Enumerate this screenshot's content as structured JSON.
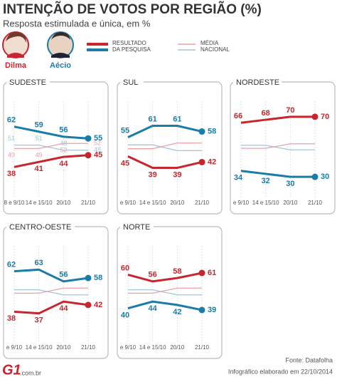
{
  "header": {
    "title": "INTENÇÃO DE VOTOS POR REGIÃO (%)",
    "subtitle": "Resposta estimulada e única, em %"
  },
  "candidates": [
    {
      "name": "Dilma",
      "color": "#c8262e"
    },
    {
      "name": "Aécio",
      "color": "#1a7ca8"
    }
  ],
  "legend": {
    "result": [
      "RESULTADO",
      "DA PESQUISA"
    ],
    "national": [
      "MÉDIA",
      "NACIONAL"
    ]
  },
  "national_average": {
    "series": [
      {
        "color": "#9fc6dd",
        "values": [
          51,
          51,
          48,
          48
        ]
      },
      {
        "color": "#e9a1a8",
        "values": [
          49,
          49,
          52,
          52
        ]
      }
    ]
  },
  "chart_data": [
    {
      "type": "line",
      "title": "SUDESTE",
      "categories": [
        "8 e 9/10",
        "14 e 15/10",
        "20/10",
        "21/10"
      ],
      "ylim": [
        25,
        75
      ],
      "show_national_labels": true,
      "series": [
        {
          "color": "#1a7ca8",
          "values": [
            62,
            59,
            56,
            55
          ]
        },
        {
          "color": "#c8262e",
          "values": [
            38,
            41,
            44,
            45
          ]
        }
      ]
    },
    {
      "type": "line",
      "title": "SUL",
      "categories": [
        "e 9/10",
        "14 e 15/10",
        "20/10",
        "21/10"
      ],
      "ylim": [
        28,
        72
      ],
      "show_national_labels": false,
      "series": [
        {
          "color": "#1a7ca8",
          "values": [
            55,
            61,
            61,
            58
          ]
        },
        {
          "color": "#c8262e",
          "values": [
            45,
            39,
            39,
            42
          ]
        }
      ]
    },
    {
      "type": "line",
      "title": "NORDESTE",
      "categories": [
        "e 9/10",
        "14 e 15/10",
        "20/10",
        "21/10"
      ],
      "ylim": [
        22,
        78
      ],
      "show_national_labels": false,
      "series": [
        {
          "color": "#c8262e",
          "values": [
            66,
            68,
            70,
            70
          ]
        },
        {
          "color": "#1a7ca8",
          "values": [
            34,
            32,
            30,
            30
          ]
        }
      ]
    },
    {
      "type": "line",
      "title": "CENTRO-OESTE",
      "categories": [
        "e 9/10",
        "14 e 15/10",
        "20/10",
        "21/10"
      ],
      "ylim": [
        25,
        75
      ],
      "show_national_labels": false,
      "series": [
        {
          "color": "#1a7ca8",
          "values": [
            62,
            63,
            56,
            58
          ]
        },
        {
          "color": "#c8262e",
          "values": [
            38,
            37,
            44,
            42
          ]
        }
      ]
    },
    {
      "type": "line",
      "title": "NORTE",
      "categories": [
        "e 9/10",
        "14 e 15/10",
        "20/10",
        "21/10"
      ],
      "ylim": [
        25,
        75
      ],
      "show_national_labels": false,
      "series": [
        {
          "color": "#c8262e",
          "values": [
            60,
            56,
            58,
            61
          ]
        },
        {
          "color": "#1a7ca8",
          "values": [
            40,
            44,
            42,
            39
          ]
        }
      ]
    }
  ],
  "footer": {
    "source": "Fonte: Datafolha",
    "date": "Infográfico elaborado em 22/10/2014",
    "logo": "G1",
    "domain": ".com.br"
  }
}
